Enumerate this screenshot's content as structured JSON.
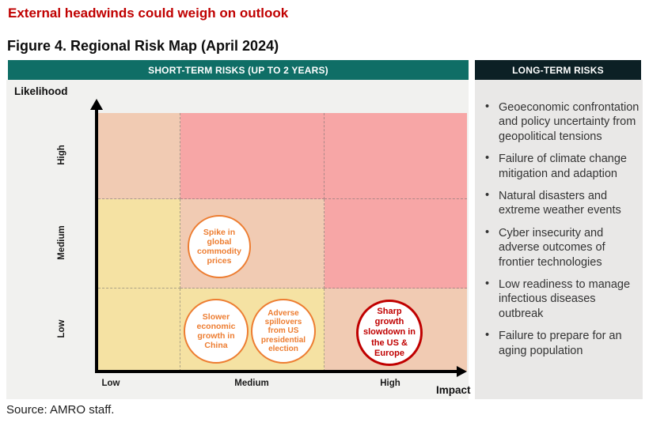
{
  "page": {
    "headline": "External headwinds could weigh on outlook",
    "figure_title": "Figure 4. Regional Risk Map (April 2024)",
    "source": "Source: AMRO staff."
  },
  "headers": {
    "short_term": "SHORT-TERM RISKS (UP TO 2 YEARS)",
    "long_term": "LONG-TERM RISKS"
  },
  "colors": {
    "headline": "#C00000",
    "short_term_bg": "#0F6E66",
    "long_term_bg": "#0C2025",
    "cell_yellow": "#F5E2A3",
    "cell_peach": "#F1CBB3",
    "cell_pink": "#F7A6A6",
    "risk_orange": "#ED7D31",
    "risk_red": "#C00000"
  },
  "chart_data": {
    "type": "heatmap",
    "title": "Regional Risk Map (April 2024)",
    "xlabel": "Impact",
    "ylabel": "Likelihood",
    "x_categories": [
      "Low",
      "Medium",
      "High"
    ],
    "y_categories_top_to_bottom": [
      "High",
      "Medium",
      "Low"
    ],
    "grid": "dashed",
    "legend_position": "none",
    "cell_colors": [
      [
        "#F1CBB3",
        "#F7A6A6",
        "#F7A6A6"
      ],
      [
        "#F5E2A3",
        "#F1CBB3",
        "#F7A6A6"
      ],
      [
        "#F5E2A3",
        "#F5E2A3",
        "#F1CBB3"
      ]
    ],
    "short_term_risks": [
      {
        "label": "Spike in global commodity prices",
        "likelihood": "Medium",
        "impact": "Medium",
        "color": "#ED7D31"
      },
      {
        "label": "Slower economic growth in China",
        "likelihood": "Low",
        "impact": "Medium",
        "color": "#ED7D31"
      },
      {
        "label": "Adverse spillovers from US presidential election",
        "likelihood": "Low",
        "impact": "Medium",
        "color": "#ED7D31"
      },
      {
        "label": "Sharp growth slowdown in the US & Europe",
        "likelihood": "Low",
        "impact": "High",
        "color": "#C00000"
      }
    ],
    "long_term_risks": [
      "Geoeconomic confrontation and policy uncertainty from geopolitical tensions",
      "Failure of climate change mitigation and adaption",
      "Natural disasters and extreme weather events",
      "Cyber insecurity and adverse outcomes of frontier technologies",
      "Low readiness to manage infectious diseases outbreak",
      "Failure to prepare for an aging population"
    ]
  }
}
